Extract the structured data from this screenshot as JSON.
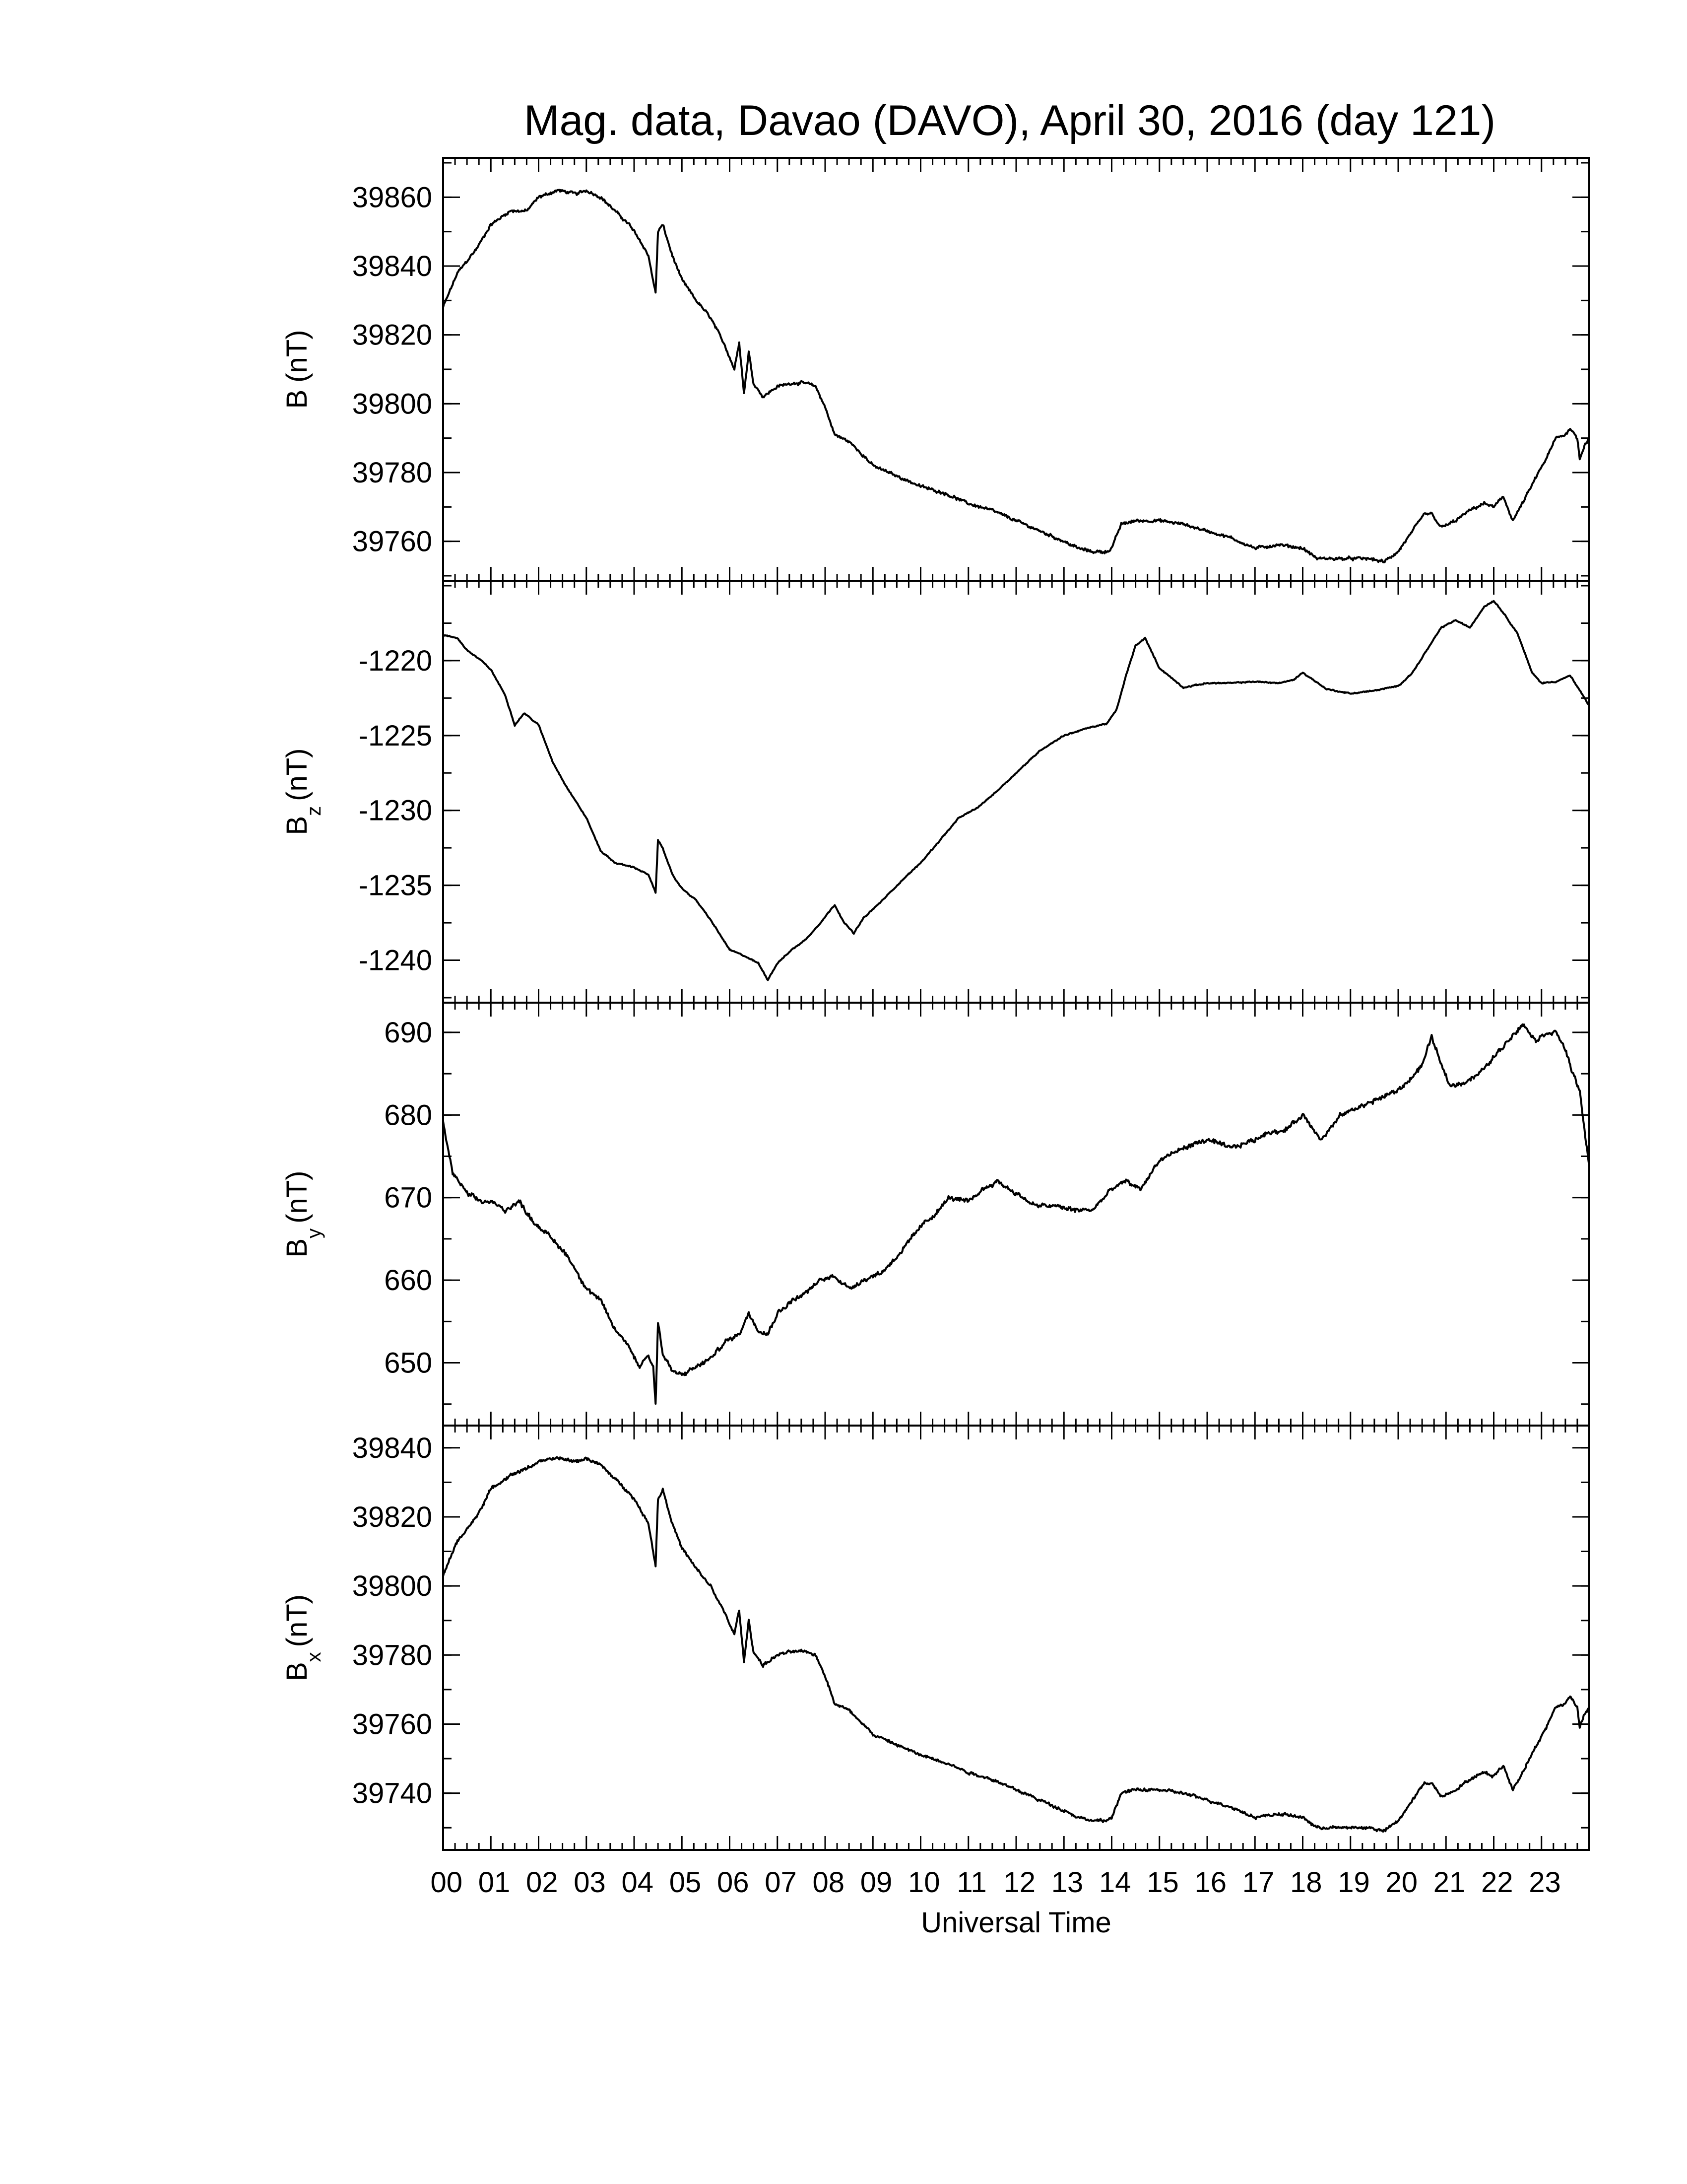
{
  "title": "Mag. data, Davao (DAVO), April 30, 2016 (day 121)",
  "chart_data": {
    "type": "line",
    "xlabel": "Universal Time",
    "x_unit": "hours UT",
    "xlim": [
      0,
      24
    ],
    "x_ticks": [
      "00",
      "01",
      "02",
      "03",
      "04",
      "05",
      "06",
      "07",
      "08",
      "09",
      "10",
      "11",
      "12",
      "13",
      "14",
      "15",
      "16",
      "17",
      "18",
      "19",
      "20",
      "21",
      "22",
      "23"
    ],
    "grid": false,
    "panels": [
      {
        "key": "B",
        "ylabel_main": "B",
        "ylabel_sub": "",
        "ylabel_unit": "(nT)",
        "ylim": [
          39750,
          39870
        ],
        "yticks": [
          39760,
          39780,
          39800,
          39820,
          39840,
          39860
        ],
        "noise": 0.55,
        "x": [
          0,
          0.3,
          0.7,
          1.0,
          1.4,
          1.75,
          2.0,
          2.4,
          2.8,
          3.0,
          3.3,
          3.6,
          3.9,
          4.1,
          4.3,
          4.45,
          4.5,
          4.6,
          4.8,
          5.0,
          5.3,
          5.6,
          5.9,
          6.1,
          6.2,
          6.3,
          6.4,
          6.5,
          6.7,
          7.0,
          7.3,
          7.6,
          7.8,
          8.0,
          8.2,
          8.5,
          8.8,
          9.0,
          9.5,
          10.0,
          10.5,
          11.0,
          11.5,
          12.0,
          12.5,
          13.0,
          13.3,
          13.6,
          13.9,
          14.0,
          14.2,
          14.5,
          15.0,
          15.5,
          16.0,
          16.5,
          17.0,
          17.5,
          18.0,
          18.3,
          18.6,
          19.0,
          19.4,
          19.7,
          20.0,
          20.3,
          20.55,
          20.7,
          20.9,
          21.2,
          21.5,
          21.8,
          22.0,
          22.2,
          22.4,
          22.6,
          22.9,
          23.1,
          23.3,
          23.5,
          23.6,
          23.75,
          23.8,
          23.9,
          24.0
        ],
        "y": [
          39828,
          39838,
          39845,
          39852,
          39856,
          39856,
          39860,
          39862,
          39861,
          39862,
          39860,
          39856,
          39852,
          39848,
          39843,
          39832,
          39850,
          39852,
          39843,
          39836,
          39830,
          39825,
          39817,
          39810,
          39818,
          39803,
          39815,
          39806,
          39802,
          39805,
          39806,
          39806,
          39805,
          39799,
          39791,
          39789,
          39785,
          39782,
          39779,
          39776,
          39774,
          39771,
          39769,
          39766,
          39763,
          39760,
          39758,
          39757,
          39757,
          39758,
          39765,
          39766,
          39766,
          39765,
          39763,
          39761,
          39758,
          39759,
          39758,
          39755,
          39755,
          39755,
          39755,
          39754,
          39757,
          39763,
          39768,
          39768,
          39764,
          39766,
          39769,
          39771,
          39770,
          39773,
          39766,
          39771,
          39779,
          39784,
          39790,
          39791,
          39793,
          39790,
          39784,
          39788,
          39790
        ]
      },
      {
        "key": "Bz",
        "ylabel_main": "B",
        "ylabel_sub": "z",
        "ylabel_unit": "(nT)",
        "ylim": [
          -1242.5,
          -1215
        ],
        "yticks": [
          -1240,
          -1235,
          -1230,
          -1225,
          -1220
        ],
        "noise": 0.05,
        "x": [
          0,
          0.3,
          0.5,
          0.8,
          1.0,
          1.3,
          1.5,
          1.7,
          2.0,
          2.3,
          2.6,
          3.0,
          3.3,
          3.6,
          4.0,
          4.3,
          4.45,
          4.5,
          4.6,
          4.8,
          5.0,
          5.3,
          5.6,
          6.0,
          6.3,
          6.6,
          6.8,
          7.0,
          7.3,
          7.6,
          7.9,
          8.2,
          8.4,
          8.6,
          8.8,
          9.2,
          9.6,
          10.0,
          10.4,
          10.8,
          11.2,
          11.6,
          12.0,
          12.5,
          13.0,
          13.5,
          13.9,
          14.1,
          14.3,
          14.5,
          14.7,
          15.0,
          15.5,
          16.0,
          16.5,
          17.0,
          17.5,
          17.8,
          18.0,
          18.5,
          19.0,
          19.5,
          20.0,
          20.3,
          20.6,
          20.9,
          21.2,
          21.5,
          21.8,
          22.0,
          22.2,
          22.5,
          22.8,
          23.0,
          23.3,
          23.6,
          23.8,
          24.0
        ],
        "y": [
          -1218.3,
          -1218.5,
          -1219.3,
          -1220.0,
          -1220.6,
          -1222.3,
          -1224.3,
          -1223.5,
          -1224.3,
          -1226.8,
          -1228.5,
          -1230.5,
          -1232.7,
          -1233.5,
          -1233.8,
          -1234.3,
          -1235.5,
          -1232.0,
          -1232.5,
          -1234.3,
          -1235.2,
          -1236.0,
          -1237.3,
          -1239.3,
          -1239.7,
          -1240.2,
          -1241.3,
          -1240.2,
          -1239.3,
          -1238.6,
          -1237.5,
          -1236.3,
          -1237.5,
          -1238.2,
          -1237.2,
          -1236.0,
          -1234.7,
          -1233.5,
          -1232.0,
          -1230.5,
          -1229.8,
          -1228.7,
          -1227.5,
          -1226.0,
          -1225.0,
          -1224.5,
          -1224.2,
          -1223.3,
          -1221.0,
          -1219.0,
          -1218.5,
          -1220.5,
          -1221.8,
          -1221.5,
          -1221.5,
          -1221.4,
          -1221.5,
          -1221.3,
          -1220.8,
          -1221.9,
          -1222.2,
          -1222.0,
          -1221.7,
          -1220.8,
          -1219.3,
          -1217.8,
          -1217.3,
          -1217.8,
          -1216.4,
          -1216.0,
          -1216.8,
          -1218.2,
          -1220.8,
          -1221.5,
          -1221.4,
          -1221.0,
          -1222.0,
          -1223.0
        ]
      },
      {
        "key": "By",
        "ylabel_main": "B",
        "ylabel_sub": "y",
        "ylabel_unit": "(nT)",
        "ylim": [
          643,
          693
        ],
        "yticks": [
          650,
          660,
          670,
          680,
          690
        ],
        "noise": 0.35,
        "x": [
          0,
          0.2,
          0.5,
          0.8,
          1.0,
          1.3,
          1.6,
          1.9,
          2.2,
          2.6,
          3.0,
          3.3,
          3.6,
          3.9,
          4.1,
          4.3,
          4.4,
          4.45,
          4.5,
          4.6,
          4.8,
          5.0,
          5.3,
          5.6,
          5.9,
          6.2,
          6.4,
          6.6,
          6.8,
          7.0,
          7.3,
          7.6,
          7.9,
          8.2,
          8.5,
          8.8,
          9.2,
          9.6,
          10.0,
          10.3,
          10.6,
          11.0,
          11.3,
          11.6,
          12.0,
          12.4,
          12.8,
          13.2,
          13.6,
          14.0,
          14.3,
          14.6,
          15.0,
          15.5,
          16.0,
          16.5,
          17.0,
          17.3,
          17.6,
          18.0,
          18.4,
          18.8,
          19.2,
          19.6,
          20.0,
          20.2,
          20.5,
          20.7,
          20.9,
          21.1,
          21.4,
          21.7,
          22.0,
          22.3,
          22.6,
          22.9,
          23.1,
          23.3,
          23.5,
          23.65,
          23.8,
          23.9,
          24.0
        ],
        "y": [
          679,
          673,
          670.5,
          669.5,
          669.5,
          668.5,
          669.5,
          667,
          665.5,
          663,
          659,
          657.5,
          654,
          652,
          649.5,
          651,
          649.5,
          645,
          655,
          651,
          649,
          648.5,
          649.5,
          650.5,
          652.5,
          653.5,
          656,
          654,
          653.5,
          656,
          657.5,
          658.5,
          660,
          660.5,
          659,
          660,
          661,
          663.5,
          666.5,
          668,
          670,
          669.5,
          671,
          672,
          670.5,
          669,
          669,
          668.5,
          668.5,
          671,
          672,
          671,
          674.5,
          676,
          677,
          676,
          677,
          678,
          678,
          680,
          677,
          680,
          681,
          682,
          683,
          684,
          686,
          689.5,
          686,
          683.5,
          684,
          685,
          687,
          689,
          691,
          689,
          690,
          690,
          688,
          685,
          683,
          678,
          674
        ]
      },
      {
        "key": "Bx",
        "ylabel_main": "B",
        "ylabel_sub": "x",
        "ylabel_unit": "(nT)",
        "ylim": [
          39725,
          39845
        ],
        "yticks": [
          39740,
          39760,
          39780,
          39800,
          39820,
          39840
        ],
        "noise": 0.55,
        "x": [
          0,
          0.3,
          0.7,
          1.0,
          1.4,
          1.75,
          2.0,
          2.4,
          2.8,
          3.0,
          3.3,
          3.6,
          3.9,
          4.1,
          4.3,
          4.45,
          4.5,
          4.6,
          4.8,
          5.0,
          5.3,
          5.6,
          5.9,
          6.1,
          6.2,
          6.3,
          6.4,
          6.5,
          6.7,
          7.0,
          7.3,
          7.6,
          7.8,
          8.0,
          8.2,
          8.5,
          8.8,
          9.0,
          9.5,
          10.0,
          10.5,
          11.0,
          11.5,
          12.0,
          12.5,
          13.0,
          13.3,
          13.6,
          13.9,
          14.0,
          14.2,
          14.5,
          15.0,
          15.5,
          16.0,
          16.5,
          17.0,
          17.5,
          18.0,
          18.3,
          18.6,
          19.0,
          19.4,
          19.7,
          20.0,
          20.3,
          20.55,
          20.7,
          20.9,
          21.2,
          21.5,
          21.8,
          22.0,
          22.2,
          22.4,
          22.6,
          22.9,
          23.1,
          23.3,
          23.5,
          23.6,
          23.75,
          23.8,
          23.9,
          24.0
        ],
        "y": [
          39803,
          39813,
          39820,
          39828,
          39832,
          39834,
          39836,
          39837,
          39836,
          39837,
          39835,
          39831,
          39827,
          39823,
          39818,
          39806,
          39825,
          39828,
          39818,
          39811,
          39805,
          39800,
          39792,
          39786,
          39793,
          39778,
          39790,
          39781,
          39777,
          39780,
          39781,
          39781,
          39780,
          39774,
          39766,
          39764,
          39760,
          39757,
          39754,
          39751,
          39749,
          39746,
          39744,
          39741,
          39738,
          39735,
          39733,
          39732,
          39732,
          39733,
          39740,
          39741,
          39741,
          39740,
          39738,
          39736,
          39733,
          39734,
          39733,
          39730,
          39730,
          39730,
          39730,
          39729,
          39732,
          39738,
          39743,
          39743,
          39739,
          39741,
          39744,
          39746,
          39745,
          39748,
          39741,
          39746,
          39754,
          39759,
          39765,
          39766,
          39768,
          39765,
          39759,
          39763,
          39765
        ]
      }
    ]
  }
}
